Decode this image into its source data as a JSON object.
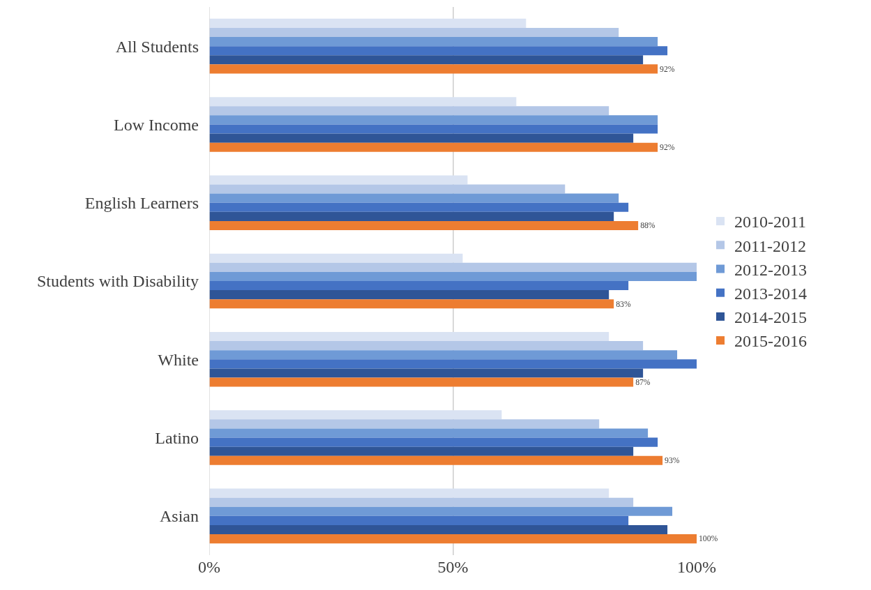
{
  "chart_data": {
    "type": "bar",
    "orientation": "horizontal",
    "categories": [
      "All Students",
      "Low Income",
      "English Learners",
      "Students with Disability",
      "White",
      "Latino",
      "Asian"
    ],
    "series": [
      {
        "name": "2010-2011",
        "color": "#dae3f3",
        "values": [
          65,
          63,
          53,
          52,
          82,
          60,
          82
        ]
      },
      {
        "name": "2011-2012",
        "color": "#b4c7e7",
        "values": [
          84,
          82,
          73,
          100,
          89,
          80,
          87
        ]
      },
      {
        "name": "2012-2013",
        "color": "#6f9ad6",
        "values": [
          92,
          92,
          84,
          100,
          96,
          90,
          95
        ]
      },
      {
        "name": "2013-2014",
        "color": "#4472c4",
        "values": [
          94,
          92,
          86,
          86,
          100,
          92,
          86
        ]
      },
      {
        "name": "2014-2015",
        "color": "#2f5597",
        "values": [
          89,
          87,
          83,
          82,
          89,
          87,
          94
        ]
      },
      {
        "name": "2015-2016",
        "color": "#ed7d31",
        "values": [
          92,
          92,
          88,
          83,
          87,
          93,
          100
        ],
        "value_labels": [
          "92%",
          "92%",
          "88%",
          "83%",
          "87%",
          "93%",
          "100%"
        ]
      }
    ],
    "xlim": [
      0,
      100
    ],
    "xticks": [
      {
        "value": 0,
        "label": "0%"
      },
      {
        "value": 50,
        "label": "50%"
      },
      {
        "value": 100,
        "label": "100%"
      }
    ],
    "grid": "x",
    "legend": "right"
  }
}
